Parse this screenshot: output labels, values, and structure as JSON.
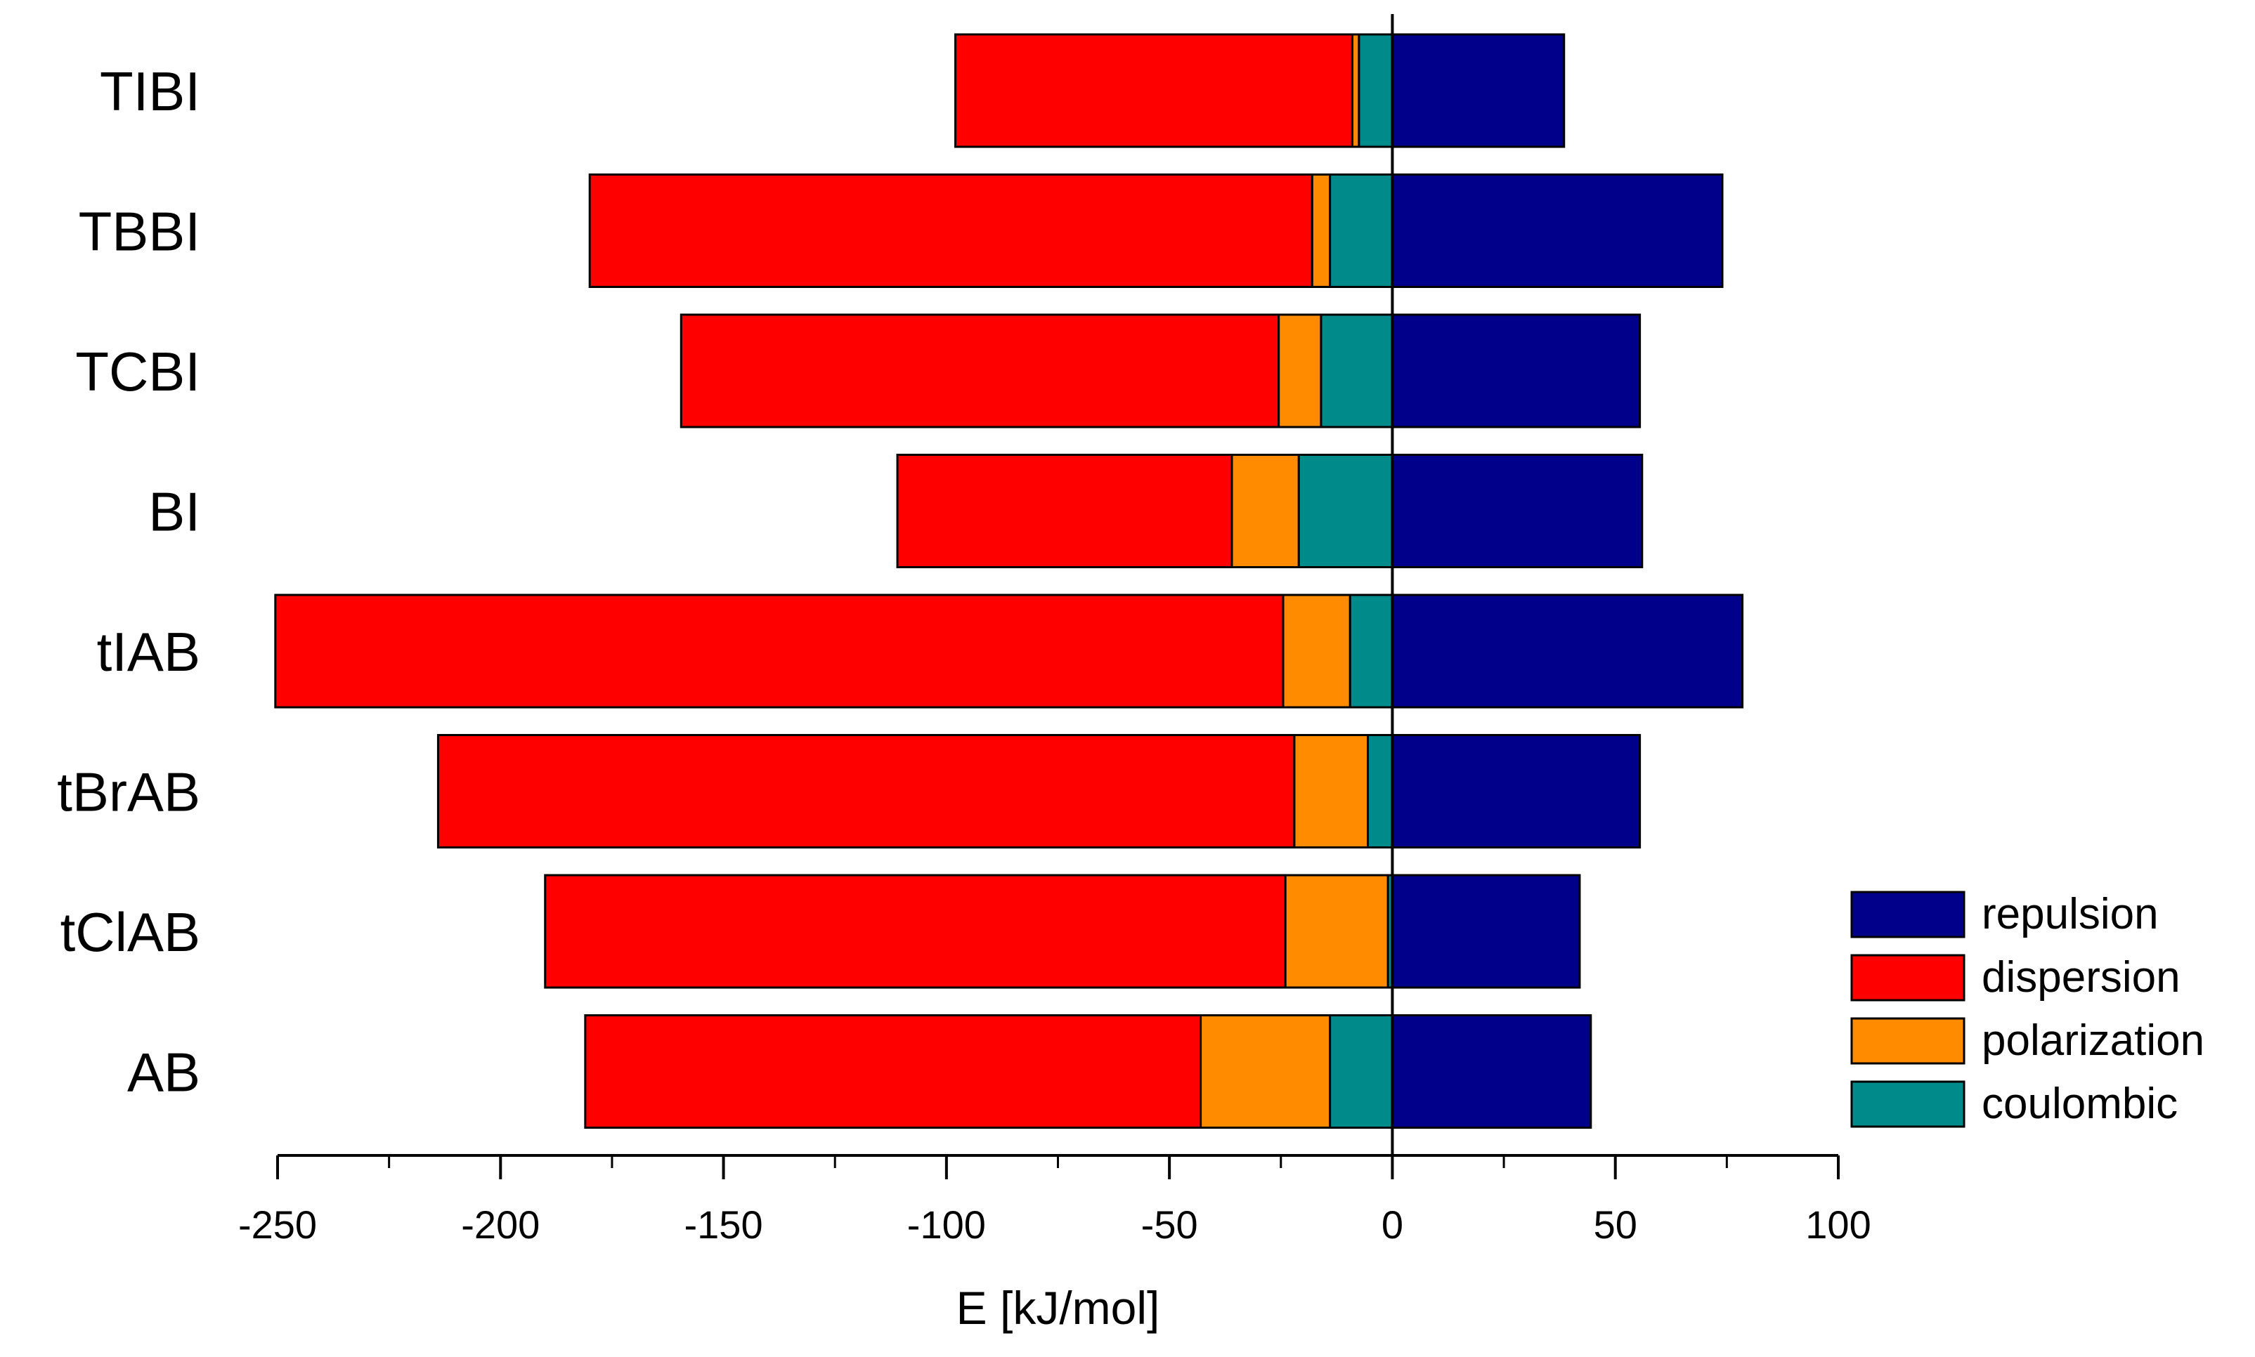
{
  "chart_data": {
    "type": "bar",
    "orientation": "horizontal",
    "stacked": true,
    "title": "",
    "xlabel": "E [kJ/mol]",
    "ylabel": "",
    "xlim": [
      -250,
      100
    ],
    "xticks": [
      -250,
      -200,
      -150,
      -100,
      -50,
      0,
      50,
      100
    ],
    "xtick_labels": [
      "-250",
      "-200",
      "-150",
      "-100",
      "-50",
      "0",
      "50",
      "100"
    ],
    "grid": false,
    "legend_position": "bottom-right",
    "categories": [
      "TIBI",
      "TBBI",
      "TCBI",
      "BI",
      "tIAB",
      "tBrAB",
      "tClAB",
      "AB"
    ],
    "series": [
      {
        "name": "repulsion",
        "color": "#00008B",
        "values": [
          38.5,
          74,
          55.5,
          56,
          78.5,
          55.5,
          42,
          44.5
        ]
      },
      {
        "name": "dispersion",
        "color": "#FF0000",
        "values": [
          -89,
          -162,
          -134,
          -75,
          -226,
          -192,
          -166,
          -138
        ]
      },
      {
        "name": "polarization",
        "color": "#FF8C00",
        "values": [
          -1.5,
          -4,
          -9.5,
          -15,
          -15,
          -16.5,
          -23,
          -29
        ]
      },
      {
        "name": "coulombic",
        "color": "#008B8B",
        "values": [
          -7.5,
          -14,
          -16,
          -21,
          -9.5,
          -5.5,
          -1,
          -14
        ]
      }
    ]
  }
}
